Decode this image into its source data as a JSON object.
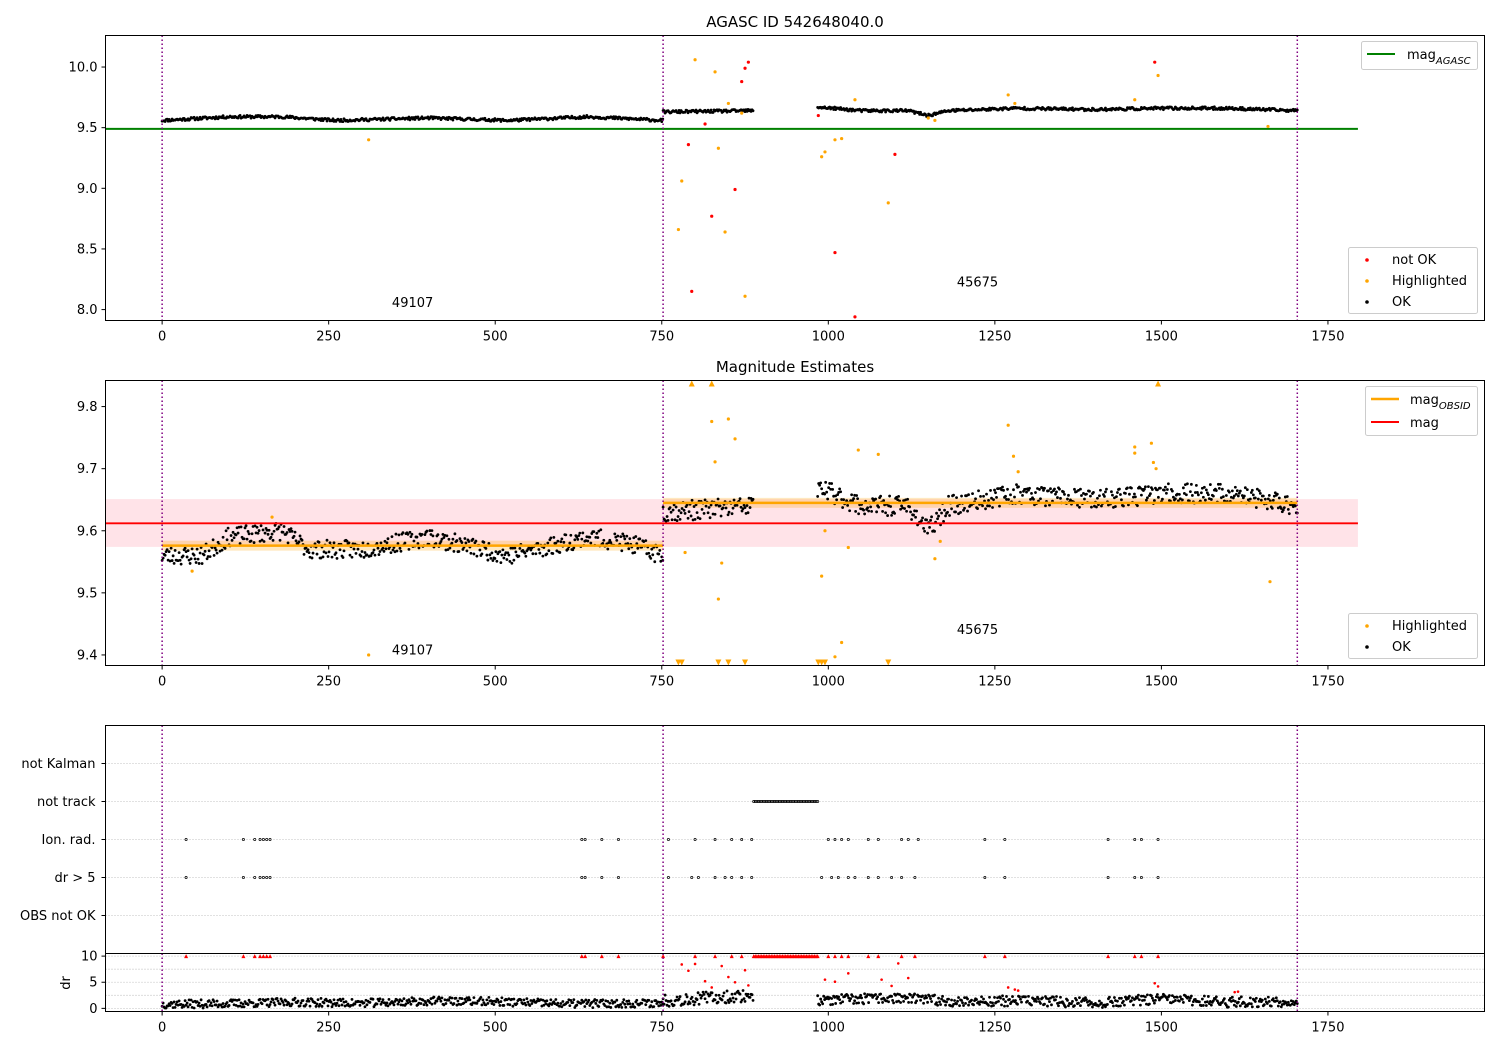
{
  "figure": {
    "subplot_1_title": "AGASC ID 542648040.0",
    "subplot_2_title": "Magnitude Estimates"
  },
  "colors": {
    "ok": "#000000",
    "highlighted": "#ffa500",
    "not_ok": "#ff0000",
    "agasc_line": "#008000",
    "mean_line": "#ff0000",
    "band": "#ffc0cb",
    "obsid_boundary": "#800080",
    "obsid_mag": "#ffa500"
  },
  "chart_data": [
    {
      "type": "scatter",
      "title": "AGASC ID 542648040.0",
      "xlabel": "",
      "ylabel": "",
      "xlim": [
        -85,
        1985
      ],
      "ylim": [
        7.91,
        10.26
      ],
      "xticks": [
        0,
        250,
        500,
        750,
        1000,
        1250,
        1500,
        1750
      ],
      "yticks": [
        8.0,
        8.5,
        9.0,
        9.5,
        10.0
      ],
      "ytick_labels": [
        "8.0",
        "8.5",
        "9.0",
        "9.5",
        "10.0"
      ],
      "grid": false,
      "obsid_boundaries": [
        0,
        752,
        1704
      ],
      "obsid_labels": [
        {
          "text": "49107",
          "x": 376,
          "y": 8.02
        },
        {
          "text": "45675",
          "x": 1224,
          "y": 8.19
        }
      ],
      "hlines": [
        {
          "name": "mag_AGASC",
          "legend_main": "mag",
          "legend_sub": "AGASC",
          "y": 9.49,
          "x_range": [
            -85,
            1795
          ],
          "color": "#008000"
        }
      ],
      "ok_segments": [
        {
          "x_start": 0,
          "x_end": 752,
          "baseline": [
            [
              0,
              9.56
            ],
            [
              100,
              9.59
            ],
            [
              180,
              9.59
            ],
            [
              260,
              9.56
            ],
            [
              400,
              9.58
            ],
            [
              520,
              9.56
            ],
            [
              640,
              9.59
            ],
            [
              752,
              9.56
            ]
          ],
          "noise": 0.012
        },
        {
          "x_start": 752,
          "x_end": 888,
          "baseline": [
            [
              752,
              9.63
            ],
            [
              888,
              9.64
            ]
          ],
          "noise": 0.012
        },
        {
          "x_start": 984,
          "x_end": 1704,
          "baseline": [
            [
              984,
              9.67
            ],
            [
              1050,
              9.64
            ],
            [
              1120,
              9.64
            ],
            [
              1150,
              9.6
            ],
            [
              1180,
              9.64
            ],
            [
              1280,
              9.66
            ],
            [
              1400,
              9.65
            ],
            [
              1500,
              9.66
            ],
            [
              1600,
              9.66
            ],
            [
              1704,
              9.64
            ]
          ],
          "noise": 0.012
        }
      ],
      "highlighted_points": [
        [
          310,
          9.4
        ],
        [
          800,
          10.06
        ],
        [
          775,
          8.66
        ],
        [
          780,
          9.06
        ],
        [
          830,
          9.96
        ],
        [
          835,
          9.33
        ],
        [
          845,
          8.64
        ],
        [
          850,
          9.7
        ],
        [
          870,
          9.62
        ],
        [
          875,
          8.11
        ],
        [
          990,
          9.26
        ],
        [
          995,
          9.3
        ],
        [
          1010,
          9.4
        ],
        [
          1020,
          9.41
        ],
        [
          1040,
          9.73
        ],
        [
          1090,
          8.88
        ],
        [
          1270,
          9.77
        ],
        [
          1280,
          9.7
        ],
        [
          1460,
          9.73
        ],
        [
          1495,
          9.93
        ],
        [
          1660,
          9.51
        ],
        [
          1150,
          9.58
        ],
        [
          1160,
          9.56
        ]
      ],
      "not_ok_points": [
        [
          790,
          9.36
        ],
        [
          795,
          8.15
        ],
        [
          815,
          9.53
        ],
        [
          825,
          8.77
        ],
        [
          860,
          8.99
        ],
        [
          875,
          9.99
        ],
        [
          880,
          10.04
        ],
        [
          870,
          9.88
        ],
        [
          1010,
          8.47
        ],
        [
          1040,
          7.94
        ],
        [
          1100,
          9.28
        ],
        [
          1490,
          10.04
        ],
        [
          985,
          9.6
        ]
      ],
      "legend": {
        "entries": [
          "not OK",
          "Highlighted",
          "OK"
        ]
      }
    },
    {
      "type": "scatter",
      "title": "Magnitude Estimates",
      "xlabel": "",
      "ylabel": "",
      "xlim": [
        -85,
        1985
      ],
      "ylim": [
        9.383,
        9.842
      ],
      "xticks": [
        0,
        250,
        500,
        750,
        1000,
        1250,
        1500,
        1750
      ],
      "yticks": [
        9.4,
        9.5,
        9.6,
        9.7,
        9.8
      ],
      "ytick_labels": [
        "9.4",
        "9.5",
        "9.6",
        "9.7",
        "9.8"
      ],
      "grid": false,
      "obsid_boundaries": [
        0,
        752,
        1704
      ],
      "obsid_labels": [
        {
          "text": "49107",
          "x": 376,
          "y": 9.401
        },
        {
          "text": "45675",
          "x": 1224,
          "y": 9.434
        }
      ],
      "mag_line": {
        "name": "mag",
        "y": 9.612,
        "band": [
          9.574,
          9.651
        ],
        "x_range": [
          -85,
          1795
        ]
      },
      "obsid_mags": [
        {
          "name": "mag_OBSID",
          "x_range": [
            0,
            752
          ],
          "y": 9.576,
          "band": [
            9.568,
            9.584
          ]
        },
        {
          "name": "mag_OBSID",
          "x_range": [
            752,
            1704
          ],
          "y": 9.645,
          "band": [
            9.637,
            9.653
          ]
        }
      ],
      "ok_segments": [
        {
          "x_start": 0,
          "x_end": 752,
          "baseline": [
            [
              0,
              9.56
            ],
            [
              60,
              9.56
            ],
            [
              100,
              9.59
            ],
            [
              180,
              9.6
            ],
            [
              220,
              9.57
            ],
            [
              300,
              9.57
            ],
            [
              400,
              9.59
            ],
            [
              520,
              9.56
            ],
            [
              640,
              9.59
            ],
            [
              700,
              9.58
            ],
            [
              752,
              9.56
            ]
          ],
          "noise": 0.015
        },
        {
          "x_start": 752,
          "x_end": 888,
          "baseline": [
            [
              752,
              9.63
            ],
            [
              888,
              9.64
            ]
          ],
          "noise": 0.016
        },
        {
          "x_start": 984,
          "x_end": 1704,
          "baseline": [
            [
              984,
              9.67
            ],
            [
              1050,
              9.64
            ],
            [
              1120,
              9.64
            ],
            [
              1150,
              9.6
            ],
            [
              1180,
              9.64
            ],
            [
              1280,
              9.66
            ],
            [
              1400,
              9.65
            ],
            [
              1500,
              9.66
            ],
            [
              1600,
              9.66
            ],
            [
              1704,
              9.64
            ]
          ],
          "noise": 0.016
        }
      ],
      "highlighted_points": [
        [
          310,
          9.4
        ],
        [
          165,
          9.622
        ],
        [
          45,
          9.535
        ],
        [
          785,
          9.565
        ],
        [
          825,
          9.776
        ],
        [
          830,
          9.711
        ],
        [
          835,
          9.49
        ],
        [
          840,
          9.548
        ],
        [
          850,
          9.78
        ],
        [
          860,
          9.748
        ],
        [
          990,
          9.527
        ],
        [
          995,
          9.6
        ],
        [
          1010,
          9.397
        ],
        [
          1020,
          9.42
        ],
        [
          1030,
          9.573
        ],
        [
          1045,
          9.73
        ],
        [
          1075,
          9.723
        ],
        [
          1270,
          9.77
        ],
        [
          1278,
          9.72
        ],
        [
          1285,
          9.695
        ],
        [
          1460,
          9.735
        ],
        [
          1460,
          9.725
        ],
        [
          1485,
          9.741
        ],
        [
          1488,
          9.71
        ],
        [
          1492,
          9.7
        ],
        [
          1663,
          9.518
        ],
        [
          1160,
          9.555
        ],
        [
          1168,
          9.583
        ]
      ],
      "clipped_up": [
        795,
        825,
        1495
      ],
      "clipped_down": [
        775,
        780,
        835,
        850,
        875,
        985,
        990,
        995,
        1090
      ],
      "legend": {
        "entries": [
          "Highlighted",
          "OK"
        ]
      }
    },
    {
      "type": "scatter",
      "title": "",
      "xlabel": "",
      "ylabel": "",
      "xlim": [
        -85,
        1985
      ],
      "xticks": [
        0,
        250,
        500,
        750,
        1000,
        1250,
        1500,
        1750
      ],
      "flag_rows": [
        "not Kalman",
        "not track",
        "Ion. rad.",
        "dr > 5",
        "OBS not OK"
      ],
      "grid": true,
      "obsid_boundaries": [
        0,
        752,
        1704
      ],
      "flags": {
        "not track": [
          [
            888,
            984
          ]
        ],
        "Ion. rad.": [
          36,
          122,
          139,
          147,
          152,
          157,
          162,
          630,
          635,
          660,
          685,
          760,
          800,
          830,
          855,
          870,
          885,
          1000,
          1010,
          1020,
          1030,
          1060,
          1075,
          1110,
          1120,
          1135,
          1235,
          1265,
          1420,
          1460,
          1470,
          1495
        ],
        "dr > 5": [
          36,
          122,
          139,
          147,
          152,
          157,
          162,
          630,
          635,
          660,
          685,
          760,
          795,
          805,
          830,
          845,
          855,
          870,
          885,
          990,
          1005,
          1015,
          1030,
          1040,
          1060,
          1075,
          1095,
          1110,
          1130,
          1235,
          1265,
          1420,
          1460,
          1470,
          1495
        ],
        "not Kalman": [],
        "OBS not OK": []
      }
    },
    {
      "type": "scatter",
      "title": "",
      "xlabel": "",
      "ylabel": "dr",
      "xlim": [
        -85,
        1985
      ],
      "ylim": [
        -0.6,
        10.5
      ],
      "xticks": [
        0,
        250,
        500,
        750,
        1000,
        1250,
        1500,
        1750
      ],
      "yticks": [
        0,
        5,
        10
      ],
      "ytick_labels": [
        "0",
        "5",
        "10"
      ],
      "grid": true,
      "obsid_boundaries": [
        0,
        752,
        1704
      ],
      "dr_clipped": [
        [
          888,
          984
        ],
        36,
        122,
        139,
        147,
        152,
        157,
        162,
        630,
        635,
        660,
        685,
        752,
        800,
        830,
        855,
        870,
        1000,
        1010,
        1020,
        1030,
        1060,
        1075,
        1110,
        1130,
        1235,
        1265,
        1420,
        1460,
        1470,
        1495
      ],
      "dr_red_points": [
        [
          780,
          8.4
        ],
        [
          790,
          7.2
        ],
        [
          800,
          8.5
        ],
        [
          815,
          5.2
        ],
        [
          825,
          4
        ],
        [
          840,
          8.1
        ],
        [
          850,
          6
        ],
        [
          860,
          5
        ],
        [
          875,
          7.3
        ],
        [
          880,
          4.4
        ],
        [
          995,
          5.5
        ],
        [
          1010,
          5.1
        ],
        [
          1030,
          6.7
        ],
        [
          1080,
          5.5
        ],
        [
          1095,
          4.3
        ],
        [
          1105,
          8.6
        ],
        [
          1120,
          5.8
        ],
        [
          1270,
          4
        ],
        [
          1280,
          3.6
        ],
        [
          1285,
          3.4
        ],
        [
          1490,
          4.8
        ],
        [
          1495,
          4.2
        ],
        [
          1610,
          3.1
        ],
        [
          1615,
          3.2
        ]
      ],
      "dr_black_segments": [
        {
          "x_start": 0,
          "x_end": 752,
          "baseline": [
            [
              0,
              0.8
            ],
            [
              100,
              0.9
            ],
            [
              200,
              1.2
            ],
            [
              300,
              1
            ],
            [
              400,
              1.4
            ],
            [
              500,
              1.3
            ],
            [
              600,
              0.9
            ],
            [
              752,
              1
            ]
          ],
          "noise": 0.8
        },
        {
          "x_start": 752,
          "x_end": 888,
          "baseline": [
            [
              752,
              1.5
            ],
            [
              888,
              2.5
            ]
          ],
          "noise": 1.2
        },
        {
          "x_start": 984,
          "x_end": 1704,
          "baseline": [
            [
              984,
              1.5
            ],
            [
              1100,
              2
            ],
            [
              1200,
              1.3
            ],
            [
              1300,
              1.5
            ],
            [
              1400,
              1
            ],
            [
              1500,
              1.8
            ],
            [
              1600,
              1.2
            ],
            [
              1704,
              1.3
            ]
          ],
          "noise": 1.0
        }
      ]
    }
  ]
}
